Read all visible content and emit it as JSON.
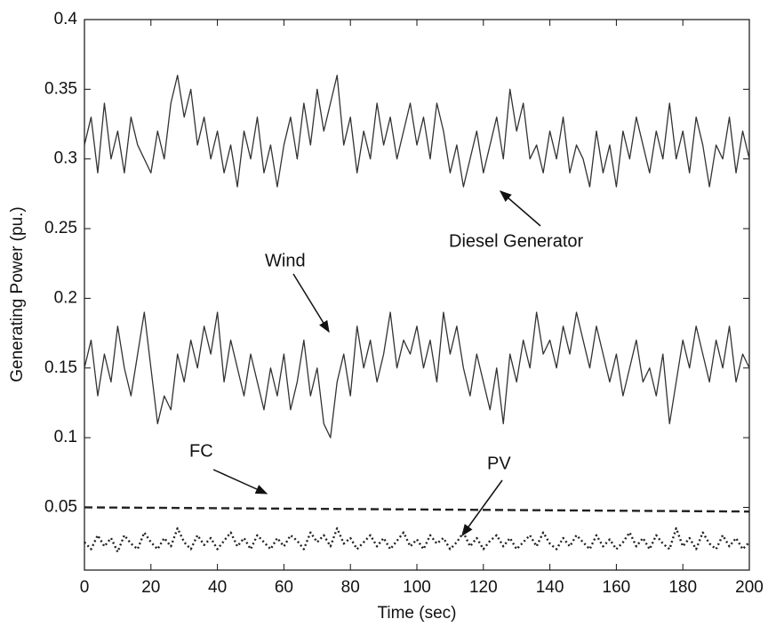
{
  "chart_data": {
    "type": "line",
    "x_label": "Time (sec)",
    "y_label": "Generating Power (pu.)",
    "xlim": [
      0,
      200
    ],
    "xticks": [
      0,
      20,
      40,
      60,
      80,
      100,
      120,
      140,
      160,
      180,
      200
    ],
    "ylim": [
      0.005,
      0.4
    ],
    "yticks": [
      0.05,
      0.1,
      0.15,
      0.2,
      0.25,
      0.3,
      0.35,
      0.4
    ],
    "grid": false,
    "x": [
      0,
      2,
      4,
      6,
      8,
      10,
      12,
      14,
      16,
      18,
      20,
      22,
      24,
      26,
      28,
      30,
      32,
      34,
      36,
      38,
      40,
      42,
      44,
      46,
      48,
      50,
      52,
      54,
      56,
      58,
      60,
      62,
      64,
      66,
      68,
      70,
      72,
      74,
      76,
      78,
      80,
      82,
      84,
      86,
      88,
      90,
      92,
      94,
      96,
      98,
      100,
      102,
      104,
      106,
      108,
      110,
      112,
      114,
      116,
      118,
      120,
      122,
      124,
      126,
      128,
      130,
      132,
      134,
      136,
      138,
      140,
      142,
      144,
      146,
      148,
      150,
      152,
      154,
      156,
      158,
      160,
      162,
      164,
      166,
      168,
      170,
      172,
      174,
      176,
      178,
      180,
      182,
      184,
      186,
      188,
      190,
      192,
      194,
      196,
      198,
      200
    ],
    "series": [
      {
        "name": "Diesel Generator",
        "color": "#333333",
        "style": "solid",
        "values": [
          0.31,
          0.33,
          0.29,
          0.34,
          0.3,
          0.32,
          0.29,
          0.33,
          0.31,
          0.3,
          0.29,
          0.32,
          0.3,
          0.34,
          0.36,
          0.33,
          0.35,
          0.31,
          0.33,
          0.3,
          0.32,
          0.29,
          0.31,
          0.28,
          0.32,
          0.3,
          0.33,
          0.29,
          0.31,
          0.28,
          0.31,
          0.33,
          0.3,
          0.34,
          0.31,
          0.35,
          0.32,
          0.34,
          0.36,
          0.31,
          0.33,
          0.29,
          0.32,
          0.3,
          0.34,
          0.31,
          0.33,
          0.3,
          0.32,
          0.34,
          0.31,
          0.33,
          0.3,
          0.34,
          0.32,
          0.29,
          0.31,
          0.28,
          0.3,
          0.32,
          0.29,
          0.31,
          0.33,
          0.3,
          0.35,
          0.32,
          0.34,
          0.3,
          0.31,
          0.29,
          0.32,
          0.3,
          0.33,
          0.29,
          0.31,
          0.3,
          0.28,
          0.32,
          0.29,
          0.31,
          0.28,
          0.32,
          0.3,
          0.33,
          0.31,
          0.29,
          0.32,
          0.3,
          0.34,
          0.3,
          0.32,
          0.29,
          0.33,
          0.31,
          0.28,
          0.31,
          0.3,
          0.33,
          0.29,
          0.32,
          0.3
        ]
      },
      {
        "name": "Wind",
        "color": "#333333",
        "style": "solid",
        "values": [
          0.15,
          0.17,
          0.13,
          0.16,
          0.14,
          0.18,
          0.15,
          0.13,
          0.16,
          0.19,
          0.15,
          0.11,
          0.13,
          0.12,
          0.16,
          0.14,
          0.17,
          0.15,
          0.18,
          0.16,
          0.19,
          0.14,
          0.17,
          0.15,
          0.13,
          0.16,
          0.14,
          0.12,
          0.15,
          0.13,
          0.16,
          0.12,
          0.14,
          0.17,
          0.13,
          0.15,
          0.11,
          0.1,
          0.14,
          0.16,
          0.13,
          0.18,
          0.15,
          0.17,
          0.14,
          0.16,
          0.19,
          0.15,
          0.17,
          0.16,
          0.18,
          0.15,
          0.17,
          0.14,
          0.19,
          0.16,
          0.18,
          0.15,
          0.13,
          0.16,
          0.14,
          0.12,
          0.15,
          0.11,
          0.16,
          0.14,
          0.17,
          0.15,
          0.19,
          0.16,
          0.17,
          0.15,
          0.18,
          0.16,
          0.19,
          0.17,
          0.15,
          0.18,
          0.16,
          0.14,
          0.16,
          0.13,
          0.15,
          0.17,
          0.14,
          0.15,
          0.13,
          0.16,
          0.11,
          0.14,
          0.17,
          0.15,
          0.18,
          0.16,
          0.14,
          0.17,
          0.15,
          0.18,
          0.14,
          0.16,
          0.15
        ]
      },
      {
        "name": "FC",
        "color": "#222222",
        "style": "dashed",
        "x": [
          0,
          200
        ],
        "values": [
          0.05,
          0.047
        ]
      },
      {
        "name": "PV",
        "color": "#222222",
        "style": "dotted",
        "values": [
          0.025,
          0.02,
          0.03,
          0.022,
          0.028,
          0.018,
          0.03,
          0.024,
          0.02,
          0.032,
          0.025,
          0.02,
          0.028,
          0.022,
          0.035,
          0.025,
          0.02,
          0.03,
          0.023,
          0.028,
          0.02,
          0.026,
          0.032,
          0.022,
          0.028,
          0.02,
          0.03,
          0.025,
          0.02,
          0.028,
          0.022,
          0.03,
          0.026,
          0.02,
          0.032,
          0.025,
          0.03,
          0.022,
          0.035,
          0.024,
          0.028,
          0.02,
          0.025,
          0.03,
          0.022,
          0.028,
          0.02,
          0.026,
          0.032,
          0.022,
          0.027,
          0.02,
          0.03,
          0.024,
          0.028,
          0.02,
          0.025,
          0.032,
          0.022,
          0.028,
          0.02,
          0.026,
          0.03,
          0.022,
          0.028,
          0.02,
          0.025,
          0.03,
          0.022,
          0.032,
          0.024,
          0.02,
          0.028,
          0.022,
          0.03,
          0.025,
          0.02,
          0.03,
          0.022,
          0.027,
          0.02,
          0.025,
          0.032,
          0.022,
          0.028,
          0.02,
          0.03,
          0.024,
          0.02,
          0.035,
          0.022,
          0.028,
          0.02,
          0.032,
          0.024,
          0.02,
          0.03,
          0.022,
          0.028,
          0.02,
          0.025
        ]
      }
    ]
  }
}
